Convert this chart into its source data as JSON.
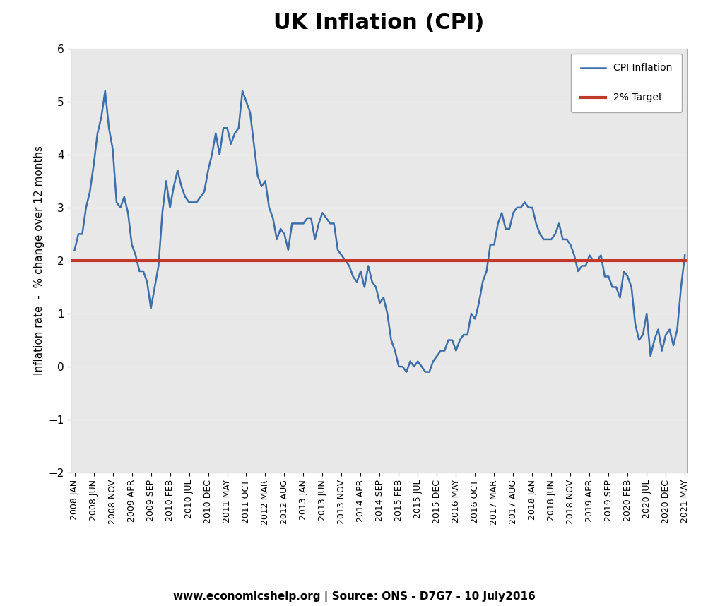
{
  "title": "UK Inflation (CPI)",
  "ylabel": "Inflation rate  -  % change over 12 months",
  "source_text": "www.economicshelp.org | Source: ONS - D7G7 - 10 July2016",
  "ylim": [
    -2,
    6
  ],
  "yticks": [
    -2,
    -1,
    0,
    1,
    2,
    3,
    4,
    5,
    6
  ],
  "target_line": 2.0,
  "line_color": "#3C6EAA",
  "target_color": "#C0392B",
  "background_color": "#FFFFFF",
  "plot_bg_color": "#E8E8E8",
  "title_fontsize": 22,
  "ylabel_fontsize": 11,
  "source_fontsize": 11,
  "tick_fontsize": 9,
  "tick_labels": [
    "2008 JAN",
    "2008 JUN",
    "2008 NOV",
    "2009 APR",
    "2009 SEP",
    "2010 FEB",
    "2010 JUL",
    "2010 DEC",
    "2011 MAY",
    "2011 OCT",
    "2012 MAR",
    "2012 AUG",
    "2013 JAN",
    "2013 JUN",
    "2013 NOV",
    "2014 APR",
    "2014 SEP",
    "2015 FEB",
    "2015 JUL",
    "2015 DEC",
    "2016 MAY",
    "2016 OCT",
    "2017 MAR",
    "2017 AUG",
    "2018 JAN",
    "2018 JUN",
    "2018 NOV",
    "2019 APR",
    "2019 SEP",
    "2020 FEB",
    "2020 JUL",
    "2020 DEC",
    "2021 MAY"
  ],
  "cpi_monthly": [
    2.2,
    2.5,
    2.5,
    3.0,
    3.3,
    3.8,
    4.4,
    4.7,
    5.2,
    4.5,
    4.1,
    3.1,
    3.0,
    3.2,
    2.9,
    2.3,
    2.1,
    1.8,
    1.8,
    1.6,
    1.1,
    1.5,
    1.9,
    2.9,
    3.5,
    3.0,
    3.4,
    3.7,
    3.4,
    3.2,
    3.1,
    3.1,
    3.1,
    3.2,
    3.3,
    3.7,
    4.0,
    4.4,
    4.0,
    4.5,
    4.5,
    4.2,
    4.4,
    4.5,
    5.2,
    5.0,
    4.8,
    4.2,
    3.6,
    3.4,
    3.5,
    3.0,
    2.8,
    2.4,
    2.6,
    2.5,
    2.2,
    2.7,
    2.7,
    2.7,
    2.7,
    2.8,
    2.8,
    2.4,
    2.7,
    2.9,
    2.8,
    2.7,
    2.7,
    2.2,
    2.1,
    2.0,
    1.9,
    1.7,
    1.6,
    1.8,
    1.5,
    1.9,
    1.6,
    1.5,
    1.2,
    1.3,
    1.0,
    0.5,
    0.3,
    0.0,
    0.0,
    -0.1,
    0.1,
    0.0,
    0.1,
    0.0,
    -0.1,
    -0.1,
    0.1,
    0.2,
    0.3,
    0.3,
    0.5,
    0.5,
    0.3,
    0.5,
    0.6,
    0.6,
    1.0,
    0.9,
    1.2,
    1.6,
    1.8,
    2.3,
    2.3,
    2.7,
    2.9,
    2.6,
    2.6,
    2.9,
    3.0,
    3.0,
    3.1,
    3.0,
    3.0,
    2.7,
    2.5,
    2.4,
    2.4,
    2.4,
    2.5,
    2.7,
    2.4,
    2.4,
    2.3,
    2.1,
    1.8,
    1.9,
    1.9,
    2.1,
    2.0,
    2.0,
    2.1,
    1.7,
    1.7,
    1.5,
    1.5,
    1.3,
    1.8,
    1.7,
    1.5,
    0.8,
    0.5,
    0.6,
    1.0,
    0.2,
    0.5,
    0.7,
    0.3,
    0.6,
    0.7,
    0.4,
    0.7,
    1.5,
    2.1
  ]
}
